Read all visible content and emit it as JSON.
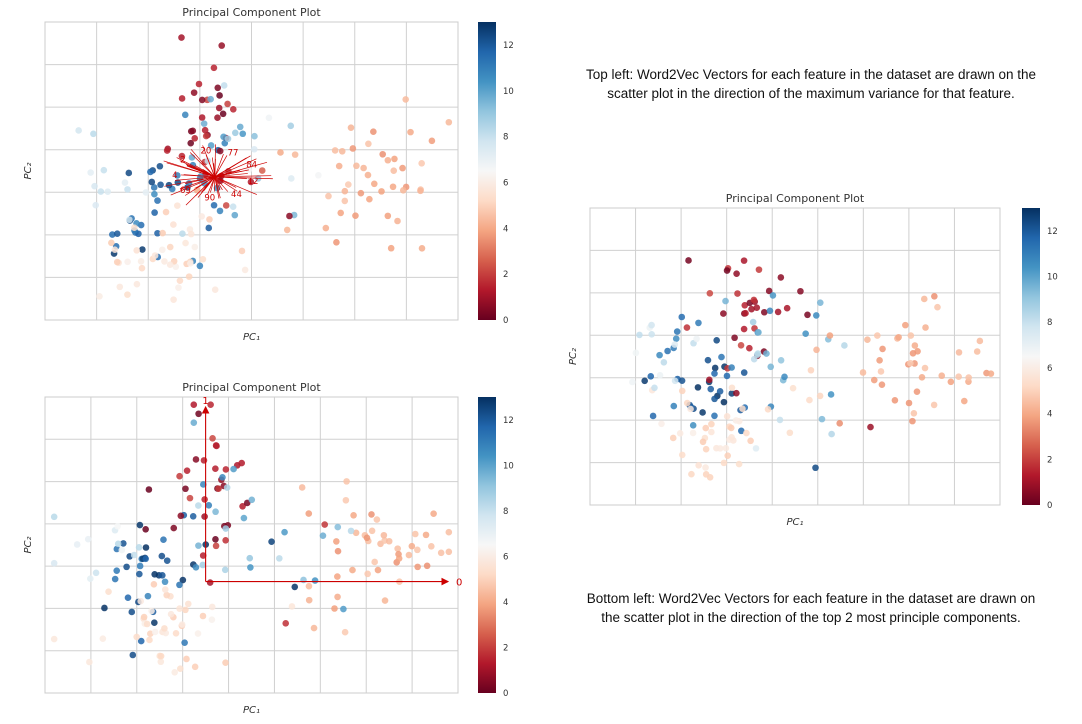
{
  "captions": {
    "top": "Top left: Word2Vec Vectors for each feature in the dataset are drawn on the scatter plot in the direction of the maximum variance for that feature.",
    "bottom": "Bottom left: Word2Vec Vectors for each feature in the dataset are drawn on the scatter plot in the direction of the top 2 most principle components."
  },
  "colors": {
    "colormap": [
      "#67001f",
      "#b2182b",
      "#d6604d",
      "#f4a582",
      "#fddbc7",
      "#f7f7f7",
      "#d1e5f0",
      "#92c5de",
      "#4393c3",
      "#2166ac",
      "#053061"
    ],
    "arrow": "#cc0000",
    "grid": "#d0d0d0"
  },
  "chart_data": [
    {
      "type": "scatter",
      "title": "Principal Component Plot",
      "xlabel": "PC₁",
      "ylabel": "PC₂",
      "grid": true,
      "colorbar": {
        "min": 0,
        "max": 13,
        "ticks": [
          "0",
          "2",
          "4",
          "6",
          "8",
          "10",
          "12"
        ]
      },
      "xlim": [
        -4.5,
        4.5
      ],
      "ylim": [
        -3.5,
        4.2
      ],
      "feature_vectors": "radial arrows from the point cloud center, labeled with feature indices",
      "arrow_labels": [
        "12",
        "44",
        "90",
        "69",
        "4",
        "2",
        "20",
        "77",
        "84"
      ],
      "point_layout": "layout-a"
    },
    {
      "type": "scatter",
      "title": "Principal Component Plot",
      "xlabel": "PC₁",
      "ylabel": "PC₂",
      "grid": true,
      "colorbar": {
        "min": 0,
        "max": 13,
        "ticks": [
          "0",
          "2",
          "4",
          "6",
          "8",
          "10",
          "12"
        ]
      },
      "xlim": [
        -4.5,
        4.5
      ],
      "ylim": [
        -3.5,
        4.2
      ],
      "arrows": [
        {
          "label": "0",
          "direction": "PC1"
        },
        {
          "label": "1",
          "direction": "PC2"
        }
      ],
      "point_layout": "layout-b"
    },
    {
      "type": "scatter",
      "title": "Principal Component Plot",
      "xlabel": "PC₁",
      "ylabel": "PC₂",
      "grid": true,
      "colorbar": {
        "min": 0,
        "max": 13,
        "ticks": [
          "0",
          "2",
          "4",
          "6",
          "8",
          "10",
          "12"
        ]
      },
      "xlim": [
        -4.5,
        4.5
      ],
      "ylim": [
        -3.5,
        4.2
      ],
      "point_layout": "layout-c"
    }
  ]
}
